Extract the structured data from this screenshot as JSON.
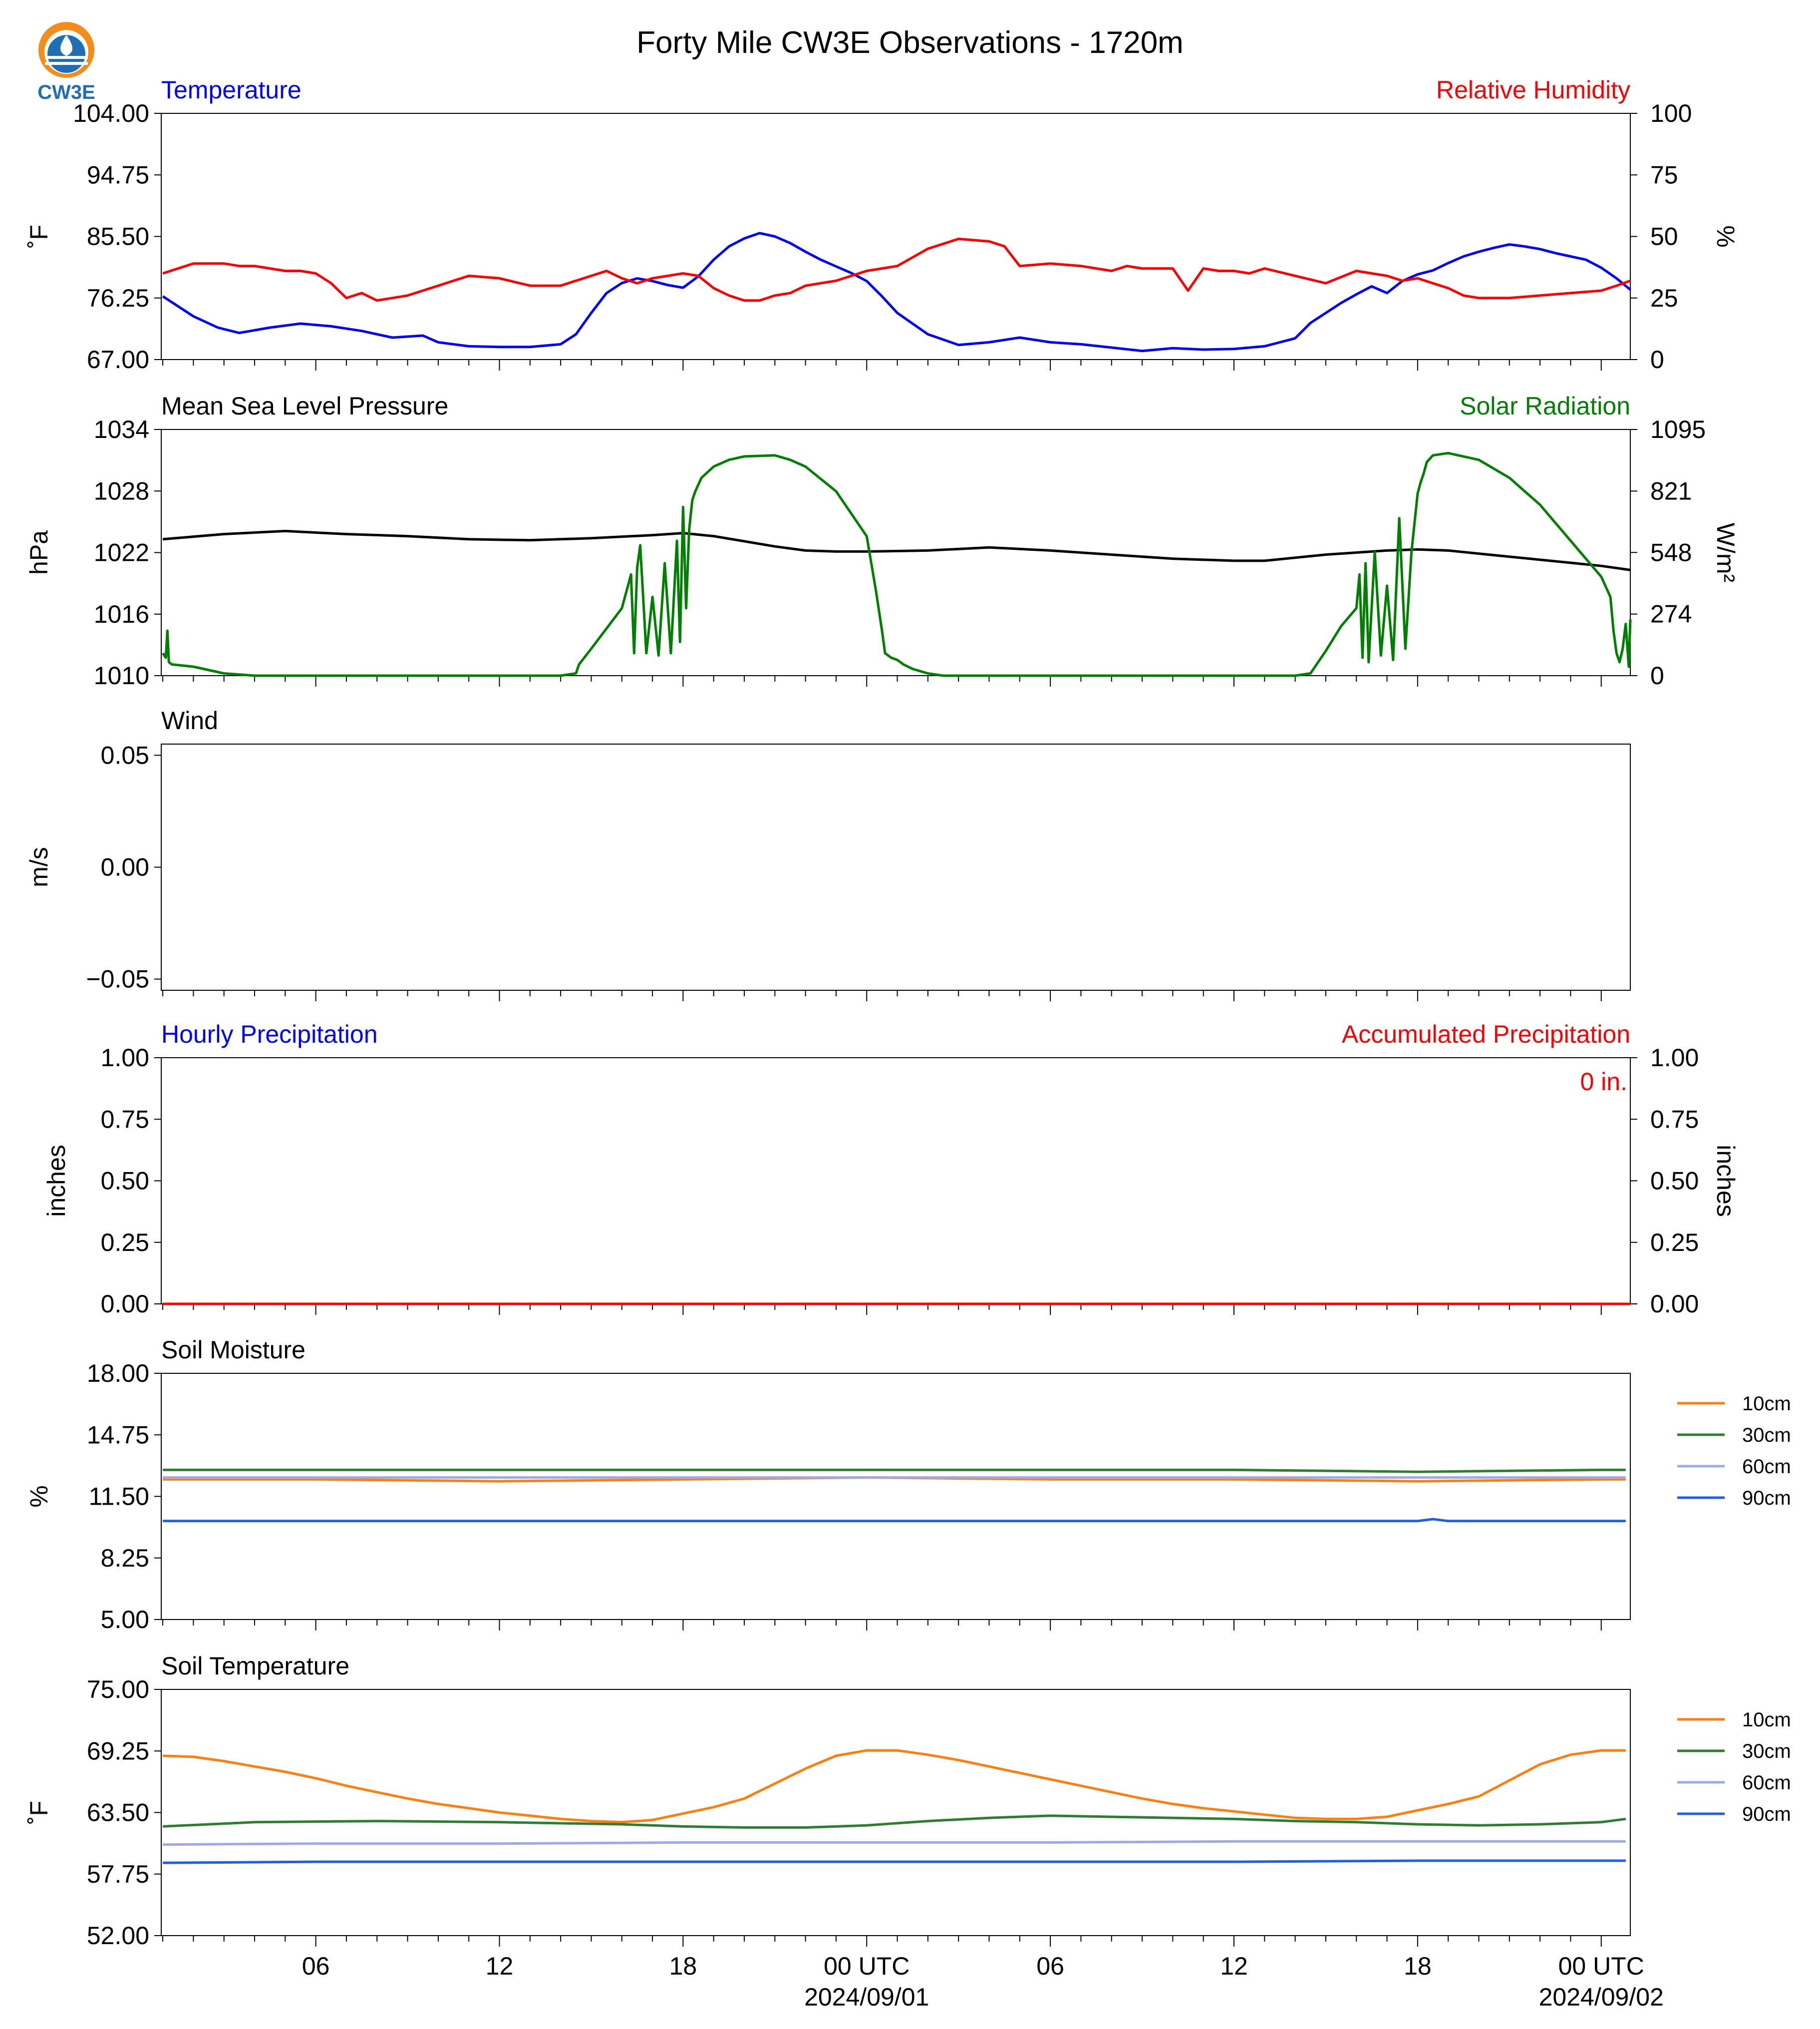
{
  "title": "Forty Mile CW3E Observations - 1720m",
  "logo": {
    "text": "CW3E",
    "icon": "cw3e-water-drop-logo"
  },
  "x_axis": {
    "ticks": [
      {
        "label": "06",
        "hour": 6
      },
      {
        "label": "12",
        "hour": 12
      },
      {
        "label": "18",
        "hour": 18
      },
      {
        "label": "00 UTC",
        "sublabel": "2024/09/01",
        "hour": 24
      },
      {
        "label": "06",
        "hour": 30
      },
      {
        "label": "12",
        "hour": 36
      },
      {
        "label": "18",
        "hour": 42
      },
      {
        "label": "00 UTC",
        "sublabel": "2024/09/02",
        "hour": 48
      }
    ],
    "minor_hour_step": 1,
    "range_hours": [
      0.95,
      48.95
    ]
  },
  "colors": {
    "temperature": "#0000ff",
    "humidity": "#ff0000",
    "pressure": "#000000",
    "solar": "#008000",
    "soil_10cm": "#ff7f0e",
    "soil_30cm": "#2e7d32",
    "soil_60cm": "#9fa8e8",
    "soil_90cm": "#1f5fe8"
  },
  "chart_data": [
    {
      "type": "line",
      "id": "temp_rh",
      "left_title": "Temperature",
      "right_title": "Relative Humidity",
      "ylabel": "˚F",
      "y2label": "%",
      "ylim": [
        67,
        104
      ],
      "yticks": [
        "67.00",
        "76.25",
        "85.50",
        "94.75",
        "104.00"
      ],
      "y2lim": [
        0,
        100
      ],
      "y2ticks": [
        "0",
        "25",
        "50",
        "75",
        "100"
      ],
      "series": [
        {
          "name": "Temperature",
          "axis": "left",
          "color_key": "temperature",
          "x": [
            1,
            2,
            2.8,
            3.5,
            4.5,
            5.5,
            6.5,
            7.5,
            8.5,
            9.5,
            10,
            11,
            12,
            13,
            14,
            14.5,
            15,
            15.5,
            16,
            16.5,
            17,
            17.5,
            18,
            18.5,
            19,
            19.5,
            20,
            20.5,
            21,
            21.5,
            22,
            22.5,
            23,
            23.5,
            24,
            24.5,
            25,
            26,
            27,
            28,
            29,
            30,
            31,
            32,
            33,
            34,
            35,
            36,
            37,
            38,
            38.5,
            39,
            39.5,
            40,
            40.5,
            41,
            41.5,
            42,
            42.5,
            43,
            43.5,
            44,
            44.5,
            45,
            45.5,
            46,
            46.5,
            47,
            47.5,
            48,
            48.5,
            48.95
          ],
          "y": [
            76.5,
            73.5,
            71.8,
            71.0,
            71.8,
            72.4,
            72.0,
            71.3,
            70.3,
            70.6,
            69.6,
            69.0,
            68.9,
            68.9,
            69.3,
            70.8,
            74.0,
            77.0,
            78.5,
            79.2,
            78.8,
            78.2,
            77.8,
            79.5,
            82.0,
            84.0,
            85.2,
            86.0,
            85.5,
            84.5,
            83.2,
            82.0,
            81.0,
            80.0,
            78.8,
            76.5,
            74.0,
            70.8,
            69.2,
            69.6,
            70.3,
            69.6,
            69.3,
            68.8,
            68.3,
            68.7,
            68.5,
            68.6,
            69.0,
            70.2,
            72.5,
            74.0,
            75.5,
            76.8,
            78.0,
            77.0,
            78.8,
            79.8,
            80.4,
            81.5,
            82.5,
            83.2,
            83.8,
            84.3,
            84.0,
            83.6,
            83.0,
            82.5,
            82.0,
            80.8,
            79.2,
            77.5
          ]
        },
        {
          "name": "Relative Humidity",
          "axis": "right",
          "color_key": "humidity",
          "x": [
            1,
            1.5,
            2,
            2.5,
            3,
            3.5,
            4,
            4.5,
            5,
            5.5,
            6,
            6.5,
            7,
            7.5,
            8,
            9,
            10,
            11,
            12,
            13,
            14,
            14.5,
            15,
            15.5,
            16,
            16.5,
            17,
            17.5,
            18,
            18.5,
            19,
            19.5,
            20,
            20.5,
            21,
            21.5,
            22,
            23,
            24,
            25,
            26,
            27,
            28,
            28.5,
            29,
            30,
            31,
            32,
            32.5,
            33,
            34,
            34.5,
            35,
            35.5,
            36,
            36.5,
            37,
            38,
            39,
            40,
            40.5,
            41,
            41.5,
            42,
            42.5,
            43,
            43.5,
            44,
            45,
            46,
            47,
            48,
            48.5,
            48.95
          ],
          "y": [
            35,
            37,
            39,
            39,
            39,
            38,
            38,
            37,
            36,
            36,
            35,
            31,
            25,
            27,
            24,
            26,
            30,
            34,
            33,
            30,
            30,
            32,
            34,
            36,
            33,
            31,
            33,
            34,
            35,
            34,
            29,
            26,
            24,
            24,
            26,
            27,
            30,
            32,
            36,
            38,
            45,
            49,
            48,
            46,
            38,
            39,
            38,
            36,
            38,
            37,
            37,
            28,
            37,
            36,
            36,
            35,
            37,
            34,
            31,
            36,
            35,
            34,
            32,
            33,
            31,
            29,
            26,
            25,
            25,
            26,
            27,
            28,
            30,
            32
          ]
        }
      ]
    },
    {
      "type": "line",
      "id": "pressure_solar",
      "left_title": "Mean Sea Level Pressure",
      "right_title": "Solar Radiation",
      "ylabel": "hPa",
      "y2label": "W/m²",
      "ylim": [
        1010,
        1034
      ],
      "yticks": [
        "1010",
        "1016",
        "1022",
        "1028",
        "1034"
      ],
      "y2lim": [
        0,
        1095
      ],
      "y2ticks": [
        "0",
        "274",
        "548",
        "821",
        "1095"
      ],
      "series": [
        {
          "name": "Mean Sea Level Pressure",
          "axis": "left",
          "color_key": "pressure",
          "x": [
            1,
            3,
            5,
            7,
            9,
            11,
            13,
            15,
            17,
            18,
            19,
            20,
            21,
            22,
            23,
            24,
            26,
            28,
            30,
            32,
            34,
            36,
            37,
            38,
            39,
            40,
            41,
            42,
            43,
            44,
            45,
            46,
            47,
            48,
            48.95
          ],
          "y": [
            1023.3,
            1023.8,
            1024.1,
            1023.8,
            1023.6,
            1023.3,
            1023.2,
            1023.4,
            1023.7,
            1023.9,
            1023.6,
            1023.1,
            1022.6,
            1022.2,
            1022.1,
            1022.1,
            1022.2,
            1022.5,
            1022.2,
            1021.8,
            1021.4,
            1021.2,
            1021.2,
            1021.5,
            1021.8,
            1022.0,
            1022.2,
            1022.3,
            1022.2,
            1021.9,
            1021.6,
            1021.3,
            1021.0,
            1020.7,
            1020.3
          ]
        },
        {
          "name": "Solar Radiation",
          "axis": "right",
          "color_key": "solar",
          "x": [
            1,
            1.1,
            1.15,
            1.2,
            1.3,
            2,
            3,
            4,
            14,
            14.5,
            14.6,
            15,
            15.5,
            16,
            16.2,
            16.3,
            16.4,
            16.5,
            16.6,
            16.8,
            17,
            17.2,
            17.4,
            17.6,
            17.8,
            17.9,
            18.0,
            18.1,
            18.2,
            18.3,
            18.4,
            18.6,
            19,
            19.5,
            20,
            21,
            21.5,
            22,
            23,
            24,
            24.3,
            24.5,
            24.6,
            24.8,
            25,
            25.2,
            25.5,
            26,
            26.5,
            27,
            28,
            30,
            38,
            38.5,
            38.7,
            39,
            39.5,
            40.0,
            40.1,
            40.2,
            40.3,
            40.4,
            40.6,
            40.8,
            41.0,
            41.2,
            41.4,
            41.6,
            41.8,
            42.0,
            42.1,
            42.2,
            42.3,
            42.5,
            43,
            44,
            45,
            46,
            47,
            48,
            48.3,
            48.4,
            48.5,
            48.6,
            48.7,
            48.8,
            48.9,
            48.95
          ],
          "y": [
            100,
            80,
            200,
            60,
            50,
            40,
            10,
            0,
            0,
            10,
            50,
            120,
            210,
            300,
            400,
            450,
            100,
            480,
            580,
            100,
            350,
            90,
            500,
            100,
            600,
            150,
            750,
            300,
            650,
            780,
            820,
            880,
            930,
            960,
            975,
            980,
            960,
            930,
            820,
            620,
            380,
            200,
            100,
            80,
            70,
            50,
            30,
            10,
            0,
            0,
            0,
            0,
            0,
            10,
            50,
            110,
            220,
            300,
            450,
            80,
            500,
            60,
            550,
            90,
            400,
            70,
            700,
            120,
            550,
            810,
            860,
            900,
            950,
            980,
            990,
            960,
            880,
            760,
            600,
            440,
            350,
            200,
            100,
            60,
            120,
            230,
            40,
            250
          ]
        }
      ]
    },
    {
      "type": "line",
      "id": "wind",
      "left_title": "Wind",
      "ylabel": "m/s",
      "ylim": [
        -0.055,
        0.055
      ],
      "yticks": [
        "−0.05",
        "0.00",
        "0.05"
      ],
      "ytick_values": [
        -0.05,
        0.0,
        0.05
      ],
      "series": []
    },
    {
      "type": "line",
      "id": "precip",
      "left_title": "Hourly Precipitation",
      "right_title": "Accumulated Precipitation",
      "ylabel": "inches",
      "y2label": "inches",
      "ylim": [
        0,
        1
      ],
      "yticks": [
        "0.00",
        "0.25",
        "0.50",
        "0.75",
        "1.00"
      ],
      "y2lim": [
        0,
        1
      ],
      "y2ticks": [
        "0.00",
        "0.25",
        "0.50",
        "0.75",
        "1.00"
      ],
      "annotation": "0 in.",
      "series": [
        {
          "name": "Hourly Precipitation",
          "axis": "left",
          "color_key": "temperature",
          "x": [
            1,
            48.95
          ],
          "y": [
            0,
            0
          ]
        },
        {
          "name": "Accumulated Precipitation",
          "axis": "right",
          "color_key": "humidity",
          "x": [
            1,
            48.95
          ],
          "y": [
            0,
            0
          ]
        }
      ]
    },
    {
      "type": "line",
      "id": "soil_moisture",
      "left_title": "Soil Moisture",
      "ylabel": "%",
      "ylim": [
        5,
        18
      ],
      "yticks": [
        "5.00",
        "8.25",
        "11.50",
        "14.75",
        "18.00"
      ],
      "legend": [
        "10cm",
        "30cm",
        "60cm",
        "90cm"
      ],
      "series": [
        {
          "name": "10cm",
          "color_key": "soil_10cm",
          "x": [
            1,
            6,
            12,
            18,
            24,
            30,
            36,
            42,
            48,
            48.8
          ],
          "y": [
            12.4,
            12.4,
            12.3,
            12.4,
            12.5,
            12.4,
            12.4,
            12.3,
            12.4,
            12.4
          ]
        },
        {
          "name": "30cm",
          "color_key": "soil_30cm",
          "x": [
            1,
            6,
            12,
            18,
            24,
            30,
            36,
            42,
            48,
            48.8
          ],
          "y": [
            12.9,
            12.9,
            12.9,
            12.9,
            12.9,
            12.9,
            12.9,
            12.8,
            12.9,
            12.9
          ]
        },
        {
          "name": "60cm",
          "color_key": "soil_60cm",
          "x": [
            1,
            6,
            12,
            18,
            24,
            30,
            36,
            42,
            48,
            48.8
          ],
          "y": [
            12.5,
            12.5,
            12.5,
            12.5,
            12.5,
            12.5,
            12.5,
            12.5,
            12.5,
            12.5
          ]
        },
        {
          "name": "90cm",
          "color_key": "soil_90cm",
          "x": [
            1,
            6,
            12,
            18,
            24,
            30,
            36,
            42,
            42.5,
            43,
            48,
            48.8
          ],
          "y": [
            10.2,
            10.2,
            10.2,
            10.2,
            10.2,
            10.2,
            10.2,
            10.2,
            10.3,
            10.2,
            10.2,
            10.2
          ]
        }
      ]
    },
    {
      "type": "line",
      "id": "soil_temperature",
      "left_title": "Soil Temperature",
      "ylabel": "˚F",
      "ylim": [
        52,
        75
      ],
      "yticks": [
        "52.00",
        "57.75",
        "63.50",
        "69.25",
        "75.00"
      ],
      "legend": [
        "10cm",
        "30cm",
        "60cm",
        "90cm"
      ],
      "series": [
        {
          "name": "10cm",
          "color_key": "soil_10cm",
          "x": [
            1,
            2,
            3,
            4,
            5,
            6,
            7,
            8,
            9,
            10,
            11,
            12,
            13,
            14,
            15,
            16,
            17,
            18,
            19,
            20,
            21,
            22,
            23,
            24,
            25,
            26,
            27,
            28,
            29,
            30,
            31,
            32,
            33,
            34,
            35,
            36,
            37,
            38,
            39,
            40,
            41,
            42,
            43,
            44,
            45,
            46,
            47,
            48,
            48.8
          ],
          "y": [
            68.8,
            68.7,
            68.3,
            67.8,
            67.3,
            66.7,
            66.0,
            65.4,
            64.8,
            64.3,
            63.9,
            63.5,
            63.2,
            62.9,
            62.7,
            62.6,
            62.8,
            63.4,
            64.0,
            64.8,
            66.2,
            67.6,
            68.8,
            69.3,
            69.3,
            68.9,
            68.4,
            67.8,
            67.2,
            66.6,
            66.0,
            65.4,
            64.8,
            64.3,
            63.9,
            63.6,
            63.3,
            63.0,
            62.9,
            62.9,
            63.1,
            63.7,
            64.3,
            65.0,
            66.5,
            68.0,
            68.9,
            69.3,
            69.3
          ]
        },
        {
          "name": "30cm",
          "color_key": "soil_30cm",
          "x": [
            1,
            4,
            8,
            12,
            16,
            18,
            20,
            22,
            24,
            26,
            28,
            30,
            32,
            34,
            36,
            38,
            40,
            42,
            44,
            46,
            48,
            48.8
          ],
          "y": [
            62.2,
            62.6,
            62.7,
            62.6,
            62.4,
            62.2,
            62.1,
            62.1,
            62.3,
            62.7,
            63.0,
            63.2,
            63.1,
            63.0,
            62.9,
            62.7,
            62.6,
            62.4,
            62.3,
            62.4,
            62.6,
            62.9
          ]
        },
        {
          "name": "60cm",
          "color_key": "soil_60cm",
          "x": [
            1,
            6,
            12,
            18,
            24,
            30,
            36,
            42,
            48,
            48.8
          ],
          "y": [
            60.5,
            60.6,
            60.6,
            60.7,
            60.7,
            60.7,
            60.8,
            60.8,
            60.8,
            60.8
          ]
        },
        {
          "name": "90cm",
          "color_key": "soil_90cm",
          "x": [
            1,
            6,
            12,
            18,
            24,
            30,
            36,
            42,
            48,
            48.8
          ],
          "y": [
            58.8,
            58.9,
            58.9,
            58.9,
            58.9,
            58.9,
            58.9,
            59.0,
            59.0,
            59.0
          ]
        }
      ]
    }
  ]
}
